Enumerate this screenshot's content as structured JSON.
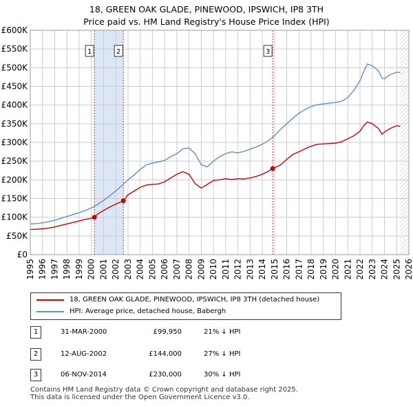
{
  "header": {
    "title_line1": "18, GREEN OAK GLADE, PINEWOOD, IPSWICH, IP8 3TH",
    "title_line2": "Price paid vs. HM Land Registry's House Price Index (HPI)"
  },
  "legend": {
    "red_label": "18, GREEN OAK GLADE, PINEWOOD, IPSWICH, IP8 3TH (detached house)",
    "blue_label": "HPI: Average price, detached house, Babergh"
  },
  "colors": {
    "red": "#cc0000",
    "blue": "#5b8fd1",
    "band": "#dbe6f6",
    "grid": "#cccccc",
    "vline": "#cc3333"
  },
  "transactions": [
    {
      "num": "1",
      "date": "31-MAR-2000",
      "price": "£99,950",
      "hpi": "21% ↓ HPI"
    },
    {
      "num": "2",
      "date": "12-AUG-2002",
      "price": "£144,000",
      "hpi": "27% ↓ HPI"
    },
    {
      "num": "3",
      "date": "06-NOV-2014",
      "price": "£230,000",
      "hpi": "30% ↓ HPI"
    }
  ],
  "footer": {
    "line1": "Contains HM Land Registry data © Crown copyright and database right 2025.",
    "line2": "This data is licensed under the Open Government Licence v3.0."
  },
  "chart_data": {
    "type": "line",
    "title": "18, GREEN OAK GLADE, PINEWOOD, IPSWICH, IP8 3TH",
    "subtitle": "Price paid vs. HM Land Registry's House Price Index (HPI)",
    "xlabel": "",
    "ylabel": "",
    "xlim": [
      1995,
      2026
    ],
    "ylim": [
      0,
      600000
    ],
    "grid": true,
    "legend_position": "bottom",
    "x_ticks": [
      1995,
      1996,
      1997,
      1998,
      1999,
      2000,
      2001,
      2002,
      2003,
      2004,
      2005,
      2006,
      2007,
      2008,
      2009,
      2010,
      2011,
      2012,
      2013,
      2014,
      2015,
      2016,
      2017,
      2018,
      2019,
      2020,
      2021,
      2022,
      2023,
      2024,
      2025,
      2026
    ],
    "y_ticks": [
      {
        "value": 0,
        "label": "£0"
      },
      {
        "value": 50000,
        "label": "£50K"
      },
      {
        "value": 100000,
        "label": "£100K"
      },
      {
        "value": 150000,
        "label": "£150K"
      },
      {
        "value": 200000,
        "label": "£200K"
      },
      {
        "value": 250000,
        "label": "£250K"
      },
      {
        "value": 300000,
        "label": "£300K"
      },
      {
        "value": 350000,
        "label": "£350K"
      },
      {
        "value": 400000,
        "label": "£400K"
      },
      {
        "value": 450000,
        "label": "£450K"
      },
      {
        "value": 500000,
        "label": "£500K"
      },
      {
        "value": 550000,
        "label": "£550K"
      },
      {
        "value": 600000,
        "label": "£600K"
      }
    ],
    "shaded_band": [
      2000.25,
      2002.62
    ],
    "future_hatch_from": 2025.3,
    "series": [
      {
        "name": "18, GREEN OAK GLADE, PINEWOOD, IPSWICH, IP8 3TH (detached house)",
        "color": "#cc0000",
        "x": [
          1995.0,
          1995.5,
          1996.0,
          1996.5,
          1997.0,
          1997.5,
          1998.0,
          1998.5,
          1999.0,
          1999.5,
          2000.0,
          2000.25,
          2000.5,
          2001.0,
          2001.5,
          2002.0,
          2002.62,
          2003.0,
          2003.5,
          2004.0,
          2004.5,
          2005.0,
          2005.5,
          2006.0,
          2006.5,
          2007.0,
          2007.5,
          2008.0,
          2008.5,
          2009.0,
          2009.5,
          2010.0,
          2010.5,
          2011.0,
          2011.5,
          2012.0,
          2012.5,
          2013.0,
          2013.5,
          2014.0,
          2014.5,
          2014.85,
          2015.5,
          2016.0,
          2016.5,
          2017.0,
          2017.5,
          2018.0,
          2018.5,
          2019.0,
          2019.5,
          2020.0,
          2020.5,
          2021.0,
          2021.5,
          2022.0,
          2022.3,
          2022.6,
          2023.0,
          2023.5,
          2023.8,
          2024.0,
          2024.5,
          2025.0,
          2025.3
        ],
        "values": [
          67000,
          68000,
          69000,
          71000,
          74000,
          78000,
          82000,
          86000,
          90000,
          94000,
          97000,
          99950,
          108000,
          118000,
          127000,
          135000,
          144000,
          160000,
          170000,
          180000,
          186000,
          188000,
          189000,
          195000,
          205000,
          215000,
          222000,
          215000,
          190000,
          178000,
          188000,
          198000,
          200000,
          203000,
          201000,
          203000,
          202000,
          205000,
          209000,
          215000,
          223000,
          230000,
          240000,
          255000,
          268000,
          275000,
          283000,
          290000,
          295000,
          296000,
          297000,
          298000,
          302000,
          310000,
          318000,
          330000,
          345000,
          355000,
          350000,
          338000,
          322000,
          328000,
          338000,
          345000,
          343000
        ]
      },
      {
        "name": "HPI: Average price, detached house, Babergh",
        "color": "#5b8fd1",
        "x": [
          1995.0,
          1995.5,
          1996.0,
          1996.5,
          1997.0,
          1997.5,
          1998.0,
          1998.5,
          1999.0,
          1999.5,
          2000.0,
          2000.5,
          2001.0,
          2001.5,
          2002.0,
          2002.5,
          2003.0,
          2003.5,
          2004.0,
          2004.5,
          2005.0,
          2005.5,
          2006.0,
          2006.5,
          2007.0,
          2007.5,
          2008.0,
          2008.5,
          2009.0,
          2009.5,
          2010.0,
          2010.5,
          2011.0,
          2011.5,
          2012.0,
          2012.5,
          2013.0,
          2013.5,
          2014.0,
          2014.5,
          2015.0,
          2015.5,
          2016.0,
          2016.5,
          2017.0,
          2017.5,
          2018.0,
          2018.5,
          2019.0,
          2019.5,
          2020.0,
          2020.5,
          2021.0,
          2021.5,
          2022.0,
          2022.3,
          2022.6,
          2023.0,
          2023.5,
          2023.8,
          2024.0,
          2024.5,
          2025.0,
          2025.3
        ],
        "values": [
          82000,
          83000,
          85000,
          88000,
          92000,
          97000,
          102000,
          107000,
          112000,
          118000,
          125000,
          134000,
          145000,
          157000,
          170000,
          185000,
          200000,
          213000,
          228000,
          240000,
          245000,
          248000,
          252000,
          262000,
          270000,
          283000,
          285000,
          270000,
          240000,
          235000,
          250000,
          262000,
          270000,
          275000,
          272000,
          276000,
          282000,
          288000,
          295000,
          305000,
          318000,
          335000,
          350000,
          365000,
          378000,
          388000,
          396000,
          401000,
          403000,
          405000,
          407000,
          410000,
          420000,
          440000,
          465000,
          490000,
          510000,
          505000,
          492000,
          472000,
          470000,
          482000,
          488000,
          487000
        ]
      }
    ],
    "markers": [
      {
        "label": "1",
        "x": 2000.25,
        "y": 99950
      },
      {
        "label": "2",
        "x": 2002.62,
        "y": 144000
      },
      {
        "label": "3",
        "x": 2014.85,
        "y": 230000
      }
    ]
  }
}
